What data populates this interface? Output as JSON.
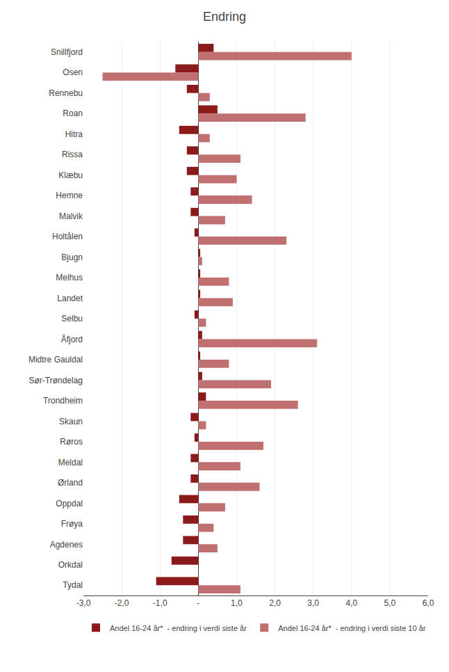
{
  "chart_data": {
    "type": "bar",
    "orientation": "horizontal",
    "title": "Endring",
    "categories": [
      "Snillfjord",
      "Osen",
      "Rennebu",
      "Roan",
      "Hitra",
      "Rissa",
      "Klæbu",
      "Hemne",
      "Malvik",
      "Holtålen",
      "Bjugn",
      "Melhus",
      "Landet",
      "Selbu",
      "Åfjord",
      "Midtre Gauldal",
      "Sør-Trøndelag",
      "Trondheim",
      "Skaun",
      "Røros",
      "Meldal",
      "Ørland",
      "Oppdal",
      "Frøya",
      "Agdenes",
      "Orkdal",
      "Tydal"
    ],
    "series": [
      {
        "name": "Andel 16-24 år*  - endring i verdi siste år",
        "color": "#8B1A1A",
        "values": [
          0.4,
          -0.6,
          -0.3,
          0.5,
          -0.5,
          -0.3,
          -0.3,
          -0.2,
          -0.2,
          -0.1,
          0.05,
          0.05,
          0.05,
          -0.1,
          0.1,
          0.05,
          0.1,
          0.2,
          -0.2,
          -0.1,
          -0.2,
          -0.2,
          -0.5,
          -0.4,
          -0.4,
          -0.7,
          -1.1
        ]
      },
      {
        "name": "Andel 16-24 år*  - endring i verdi siste 10 år",
        "color": "#C07070",
        "values": [
          4.0,
          -2.5,
          0.3,
          2.8,
          0.3,
          1.1,
          1.0,
          1.4,
          0.7,
          2.3,
          0.1,
          0.8,
          0.9,
          0.2,
          3.1,
          0.8,
          1.9,
          2.6,
          0.2,
          1.7,
          1.1,
          1.6,
          0.7,
          0.4,
          0.5,
          0.0,
          1.1
        ]
      }
    ],
    "xlim": [
      -3.0,
      6.0
    ],
    "xticks": [
      {
        "value": -3.0,
        "label": "-3,0"
      },
      {
        "value": -2.0,
        "label": "-2,0"
      },
      {
        "value": -1.0,
        "label": "-1,0"
      },
      {
        "value": 0.0,
        "label": "-"
      },
      {
        "value": 1.0,
        "label": "1,0"
      },
      {
        "value": 2.0,
        "label": "2,0"
      },
      {
        "value": 3.0,
        "label": "3,0"
      },
      {
        "value": 4.0,
        "label": "4,0"
      },
      {
        "value": 5.0,
        "label": "5,0"
      },
      {
        "value": 6.0,
        "label": "6,0"
      }
    ],
    "grid": true,
    "legend": "bottom"
  }
}
